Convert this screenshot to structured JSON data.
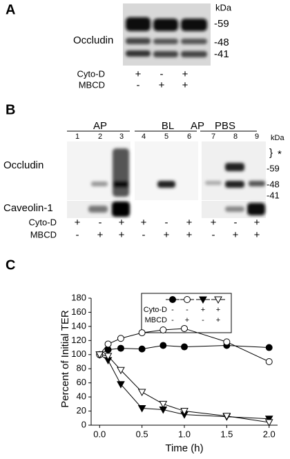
{
  "panels": {
    "a": {
      "label": "A",
      "kda": "kDa",
      "markers": [
        "-59",
        "-48",
        "-41"
      ],
      "protein": "Occludin",
      "rows": [
        {
          "label": "Cyto-D",
          "signs": [
            "+",
            "-",
            "+"
          ]
        },
        {
          "label": "MBCD",
          "signs": [
            "-",
            "+",
            "+"
          ]
        }
      ]
    },
    "b": {
      "label": "B",
      "groups": [
        "AP",
        "BL",
        "AP",
        "PBS"
      ],
      "lanes": [
        "1",
        "2",
        "3",
        "4",
        "5",
        "6",
        "7",
        "8",
        "9"
      ],
      "kda": "kDa",
      "bracket": "}",
      "star": "*",
      "markers": [
        "-59",
        "-48",
        "-41"
      ],
      "proteins": [
        "Occludin",
        "Caveolin-1"
      ],
      "rows": [
        {
          "label": "Cyto-D",
          "signs": [
            "+",
            "-",
            "+",
            "+",
            "-",
            "+",
            "+",
            "-",
            "+"
          ]
        },
        {
          "label": "MBCD",
          "signs": [
            "-",
            "+",
            "+",
            "-",
            "+",
            "+",
            "-",
            "+",
            "+"
          ]
        }
      ]
    }
  },
  "chart_data": {
    "type": "line",
    "panel_label": "C",
    "x_label": "Time (h)",
    "y_label": "Percent of Initial TER",
    "x": [
      0,
      0.1,
      0.25,
      0.5,
      0.75,
      1.0,
      1.5,
      2.0
    ],
    "series": [
      {
        "marker": "circle",
        "filled": true,
        "color": "#000000",
        "values": [
          100,
          107,
          109,
          108,
          113,
          111,
          113,
          110
        ]
      },
      {
        "marker": "circle",
        "filled": false,
        "color": "#000000",
        "values": [
          100,
          115,
          123,
          131,
          135,
          137,
          118,
          90
        ]
      },
      {
        "marker": "triangle",
        "filled": true,
        "color": "#000000",
        "values": [
          100,
          92,
          58,
          24,
          22,
          15,
          12,
          9
        ]
      },
      {
        "marker": "triangle",
        "filled": false,
        "color": "#000000",
        "values": [
          100,
          98,
          78,
          47,
          30,
          20,
          13,
          4
        ]
      }
    ],
    "legend_rows": [
      {
        "label": "Cyto-D",
        "signs": [
          "-",
          "-",
          "+",
          "+"
        ]
      },
      {
        "label": "MBCD",
        "signs": [
          "-",
          "+",
          "-",
          "+"
        ]
      }
    ],
    "xlim": [
      -0.1,
      2.1
    ],
    "xticks": [
      {
        "value": 0,
        "label": "0.0"
      },
      0.5,
      {
        "value": 1,
        "label": "1.0"
      },
      1.5,
      {
        "value": 2,
        "label": "2.0"
      }
    ],
    "ylim": [
      0,
      180
    ],
    "yticks": [
      0,
      20,
      40,
      60,
      80,
      100,
      120,
      140,
      160,
      180
    ]
  }
}
